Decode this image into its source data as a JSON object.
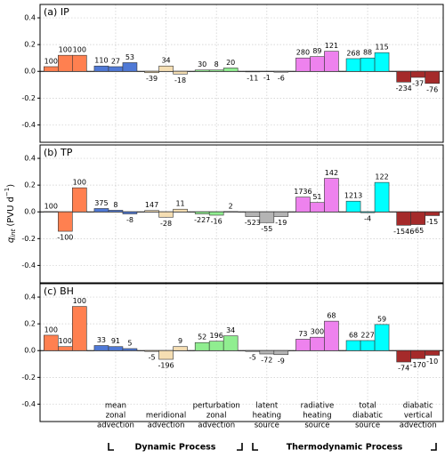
{
  "chart_data": {
    "type": "grouped_bar",
    "y_label": {
      "symbol": "q",
      "subscript": "int",
      "unit": "(PVU  d",
      "exponent": "−1",
      "close": ")"
    },
    "categories": [
      null,
      [
        "mean",
        "zonal",
        "advection"
      ],
      [
        "meridional",
        "advection"
      ],
      [
        "perturbation",
        "zonal",
        "advection"
      ],
      [
        "latent",
        "heating",
        "source"
      ],
      [
        "radiative",
        "heating",
        "source"
      ],
      [
        "total",
        "diabatic",
        "source"
      ],
      [
        "diabatic",
        "vertical",
        "advection"
      ]
    ],
    "colors": [
      "#ff8050",
      "#4f79d6",
      "#f5deb3",
      "#90ee90",
      "#b4b4b4",
      "#ee82ee",
      "#00ffff",
      "#a52a2a"
    ],
    "ylim": [
      -0.53,
      0.5
    ],
    "yticks": [
      -0.4,
      -0.2,
      {
        "value": 0,
        "label": "0.0"
      },
      0.2,
      0.4
    ],
    "grid": true,
    "process_groups": [
      {
        "label": "Dynamic Process"
      },
      {
        "label": "Thermodynamic Process"
      }
    ],
    "panels": [
      {
        "title": "(a) IP",
        "values": [
          [
            0.035,
            0.12,
            0.12
          ],
          [
            0.04,
            0.035,
            0.065
          ],
          [
            -0.01,
            0.04,
            -0.02
          ],
          [
            0.01,
            0.01,
            0.025
          ],
          [
            -0.004,
            -0.002,
            -0.006
          ],
          [
            0.1,
            0.11,
            0.15
          ],
          [
            0.095,
            0.1,
            0.14
          ],
          [
            -0.08,
            -0.045,
            -0.09
          ]
        ],
        "percent": [
          [
            100,
            100,
            100
          ],
          [
            110,
            27,
            53
          ],
          [
            -39,
            34,
            -18
          ],
          [
            30,
            8,
            20
          ],
          [
            -11,
            -1,
            -6
          ],
          [
            280,
            89,
            121
          ],
          [
            268,
            88,
            115
          ],
          [
            -234,
            -37,
            -76
          ]
        ]
      },
      {
        "title": "(b) TP",
        "values": [
          [
            0.002,
            -0.145,
            0.18
          ],
          [
            0.025,
            0.012,
            -0.015
          ],
          [
            0.01,
            -0.04,
            0.02
          ],
          [
            -0.015,
            -0.025,
            0.003
          ],
          [
            -0.035,
            -0.08,
            -0.035
          ],
          [
            0.11,
            0.07,
            0.25
          ],
          [
            0.08,
            -0.006,
            0.22
          ],
          [
            -0.1,
            -0.095,
            -0.028
          ]
        ],
        "percent": [
          [
            100,
            -100,
            100
          ],
          [
            375,
            8,
            -8
          ],
          [
            147,
            -28,
            11
          ],
          [
            -227,
            -16,
            2
          ],
          [
            -523,
            -55,
            -19
          ],
          [
            1736,
            51,
            142
          ],
          [
            1213,
            -4,
            122
          ],
          [
            -1546,
            -65,
            -15
          ]
        ]
      },
      {
        "title": "(c) BH",
        "values": [
          [
            0.115,
            0.03,
            0.33
          ],
          [
            0.038,
            0.03,
            0.015
          ],
          [
            -0.006,
            -0.065,
            0.03
          ],
          [
            0.06,
            0.07,
            0.11
          ],
          [
            -0.006,
            -0.025,
            -0.03
          ],
          [
            0.085,
            0.1,
            0.22
          ],
          [
            0.075,
            0.075,
            0.195
          ],
          [
            -0.085,
            -0.06,
            -0.035
          ]
        ],
        "percent": [
          [
            100,
            100,
            100
          ],
          [
            33,
            91,
            5
          ],
          [
            -5,
            -196,
            9
          ],
          [
            52,
            196,
            34
          ],
          [
            -5,
            -72,
            -9
          ],
          [
            73,
            300,
            68
          ],
          [
            68,
            227,
            59
          ],
          [
            -74,
            -170,
            -10
          ]
        ]
      }
    ]
  }
}
